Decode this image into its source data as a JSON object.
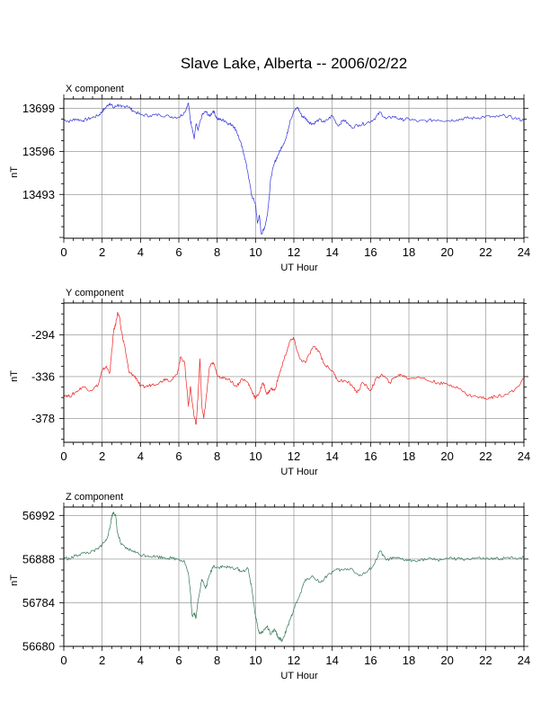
{
  "title": "Slave Lake, Alberta -- 2006/02/22",
  "colors": {
    "x": "#3333dd",
    "y": "#ee2222",
    "z": "#337755"
  },
  "chart_data": [
    {
      "type": "line",
      "panel_label": "X component",
      "xlabel": "UT Hour",
      "ylabel": "nT",
      "xlim": [
        0,
        24
      ],
      "ylim": [
        13388,
        13722
      ],
      "xticks": [
        0,
        2,
        4,
        6,
        8,
        10,
        12,
        14,
        16,
        18,
        20,
        22,
        24
      ],
      "yticks": [
        13493,
        13596,
        13699
      ],
      "grid": true,
      "series": [
        {
          "color": "x",
          "x": [
            0,
            0.3,
            0.6,
            1.0,
            1.4,
            1.8,
            2.0,
            2.2,
            2.4,
            2.6,
            2.8,
            3.0,
            3.3,
            3.6,
            4.0,
            4.5,
            5.0,
            5.5,
            6.0,
            6.3,
            6.5,
            6.6,
            6.7,
            6.8,
            6.9,
            7.0,
            7.2,
            7.4,
            7.6,
            7.8,
            8.0,
            8.2,
            8.4,
            8.6,
            8.8,
            9.0,
            9.2,
            9.4,
            9.6,
            9.8,
            10.0,
            10.1,
            10.2,
            10.3,
            10.4,
            10.5,
            10.6,
            10.7,
            10.8,
            11.0,
            11.2,
            11.4,
            11.6,
            11.8,
            12.0,
            12.2,
            12.4,
            12.6,
            12.8,
            13.0,
            13.3,
            13.6,
            14.0,
            14.3,
            14.6,
            15.0,
            15.4,
            15.8,
            16.2,
            16.5,
            16.8,
            17.2,
            17.6,
            18.0,
            18.5,
            19.0,
            19.5,
            20.0,
            20.5,
            21.0,
            21.5,
            22.0,
            22.5,
            23.0,
            23.5,
            24.0
          ],
          "values": [
            13672,
            13668,
            13674,
            13670,
            13676,
            13682,
            13692,
            13702,
            13712,
            13700,
            13708,
            13702,
            13706,
            13694,
            13684,
            13682,
            13684,
            13680,
            13678,
            13690,
            13712,
            13672,
            13652,
            13626,
            13662,
            13646,
            13682,
            13692,
            13680,
            13694,
            13674,
            13672,
            13670,
            13662,
            13660,
            13646,
            13620,
            13590,
            13546,
            13490,
            13470,
            13424,
            13442,
            13398,
            13406,
            13418,
            13440,
            13480,
            13534,
            13570,
            13590,
            13610,
            13628,
            13670,
            13692,
            13702,
            13682,
            13676,
            13666,
            13662,
            13672,
            13666,
            13682,
            13658,
            13672,
            13654,
            13660,
            13664,
            13674,
            13690,
            13674,
            13680,
            13672,
            13674,
            13668,
            13670,
            13672,
            13670,
            13672,
            13676,
            13676,
            13680,
            13678,
            13682,
            13676,
            13670
          ]
        }
      ]
    },
    {
      "type": "line",
      "panel_label": "Y component",
      "xlabel": "UT Hour",
      "ylabel": "nT",
      "xlim": [
        0,
        24
      ],
      "ylim": [
        -402,
        -262
      ],
      "xticks": [
        0,
        2,
        4,
        6,
        8,
        10,
        12,
        14,
        16,
        18,
        20,
        22,
        24
      ],
      "yticks": [
        -294,
        -336,
        -378
      ],
      "grid": true,
      "series": [
        {
          "color": "y",
          "x": [
            0,
            0.3,
            0.6,
            1.0,
            1.4,
            1.8,
            2.0,
            2.2,
            2.4,
            2.6,
            2.7,
            2.8,
            2.9,
            3.0,
            3.2,
            3.4,
            3.6,
            3.8,
            4.0,
            4.3,
            4.6,
            5.0,
            5.3,
            5.6,
            5.9,
            6.1,
            6.3,
            6.5,
            6.6,
            6.7,
            6.8,
            6.9,
            7.0,
            7.1,
            7.2,
            7.3,
            7.4,
            7.6,
            7.8,
            8.0,
            8.3,
            8.6,
            9.0,
            9.3,
            9.6,
            9.8,
            10.0,
            10.2,
            10.4,
            10.6,
            10.8,
            11.0,
            11.2,
            11.5,
            11.8,
            12.0,
            12.3,
            12.6,
            13.0,
            13.3,
            13.6,
            14.0,
            14.3,
            14.6,
            15.0,
            15.3,
            15.6,
            16.0,
            16.3,
            16.6,
            17.0,
            17.3,
            17.6,
            18.0,
            18.5,
            19.0,
            19.5,
            20.0,
            20.5,
            21.0,
            21.5,
            22.0,
            22.5,
            23.0,
            23.5,
            24.0
          ],
          "values": [
            -354,
            -356,
            -352,
            -346,
            -350,
            -344,
            -330,
            -326,
            -332,
            -290,
            -284,
            -272,
            -276,
            -290,
            -308,
            -332,
            -334,
            -338,
            -346,
            -346,
            -344,
            -342,
            -338,
            -340,
            -334,
            -316,
            -322,
            -366,
            -346,
            -362,
            -376,
            -384,
            -356,
            -318,
            -366,
            -378,
            -362,
            -326,
            -322,
            -334,
            -338,
            -338,
            -346,
            -338,
            -342,
            -350,
            -358,
            -352,
            -342,
            -354,
            -348,
            -350,
            -336,
            -318,
            -300,
            -298,
            -318,
            -322,
            -306,
            -310,
            -324,
            -330,
            -340,
            -340,
            -344,
            -352,
            -342,
            -350,
            -338,
            -334,
            -342,
            -336,
            -334,
            -338,
            -336,
            -340,
            -342,
            -344,
            -346,
            -354,
            -356,
            -358,
            -356,
            -354,
            -350,
            -338
          ]
        }
      ]
    },
    {
      "type": "line",
      "panel_label": "Z component",
      "xlabel": "UT Hour",
      "ylabel": "nT",
      "xlim": [
        0,
        24
      ],
      "ylim": [
        56680,
        57012
      ],
      "xticks": [
        0,
        2,
        4,
        6,
        8,
        10,
        12,
        14,
        16,
        18,
        20,
        22,
        24
      ],
      "yticks": [
        56680,
        56784,
        56888,
        56992
      ],
      "grid": true,
      "series": [
        {
          "color": "z",
          "x": [
            0,
            0.3,
            0.6,
            1.0,
            1.4,
            1.8,
            2.0,
            2.2,
            2.4,
            2.5,
            2.6,
            2.7,
            2.8,
            3.0,
            3.3,
            3.6,
            4.0,
            4.4,
            4.8,
            5.2,
            5.6,
            6.0,
            6.3,
            6.5,
            6.6,
            6.7,
            6.8,
            6.9,
            7.0,
            7.2,
            7.4,
            7.6,
            7.8,
            8.0,
            8.3,
            8.6,
            9.0,
            9.3,
            9.6,
            9.8,
            10.0,
            10.2,
            10.4,
            10.6,
            10.8,
            11.0,
            11.2,
            11.4,
            11.6,
            11.8,
            12.0,
            12.3,
            12.6,
            13.0,
            13.4,
            13.8,
            14.2,
            14.6,
            15.0,
            15.4,
            15.8,
            16.2,
            16.5,
            16.8,
            17.2,
            17.6,
            18.0,
            18.5,
            19.0,
            19.5,
            20.0,
            20.5,
            21.0,
            21.5,
            22.0,
            22.5,
            23.0,
            23.5,
            24.0
          ],
          "values": [
            56892,
            56888,
            56896,
            56902,
            56904,
            56912,
            56924,
            56932,
            56960,
            56990,
            57000,
            56992,
            56950,
            56922,
            56912,
            56908,
            56898,
            56896,
            56894,
            56892,
            56890,
            56888,
            56882,
            56852,
            56810,
            56752,
            56760,
            56748,
            56790,
            56840,
            56818,
            56850,
            56872,
            56868,
            56870,
            56868,
            56866,
            56858,
            56866,
            56820,
            56752,
            56710,
            56716,
            56728,
            56708,
            56720,
            56700,
            56694,
            56718,
            56742,
            56770,
            56800,
            56840,
            56846,
            56832,
            56852,
            56862,
            56862,
            56866,
            56848,
            56856,
            56876,
            56908,
            56886,
            56890,
            56888,
            56884,
            56886,
            56888,
            56886,
            56890,
            56888,
            56888,
            56890,
            56888,
            56888,
            56890,
            56890,
            56892
          ]
        }
      ]
    }
  ]
}
